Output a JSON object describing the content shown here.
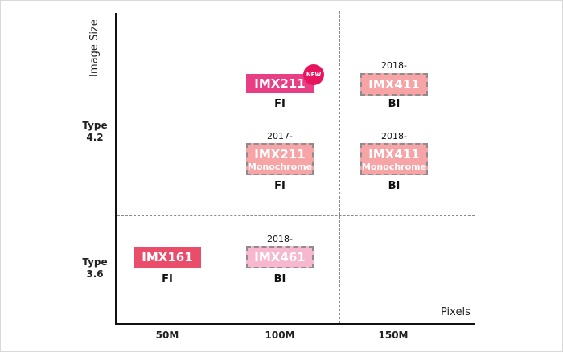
{
  "axes": {
    "y_title": "Image Size",
    "x_title": "Pixels",
    "y_ticks": [
      {
        "line1": "Type",
        "line2": "4.2"
      },
      {
        "line1": "Type",
        "line2": "3.6"
      }
    ],
    "x_ticks": [
      "50M",
      "100M",
      "150M"
    ]
  },
  "sensors": [
    {
      "id": "imx211",
      "name": "IMX211",
      "sub": "",
      "tech": "FI",
      "year": "",
      "badge": "NEW",
      "color": "#e83e84",
      "outline": "solid"
    },
    {
      "id": "imx411",
      "name": "IMX411",
      "sub": "",
      "tech": "BI",
      "year": "2018-",
      "badge": "",
      "color": "#f6a4a5",
      "outline": "dashed"
    },
    {
      "id": "imx211-mono",
      "name": "IMX211",
      "sub": "Monochrome",
      "tech": "FI",
      "year": "2017-",
      "badge": "",
      "color": "#f6a4a5",
      "outline": "dashed"
    },
    {
      "id": "imx411-mono",
      "name": "IMX411",
      "sub": "Monochrome",
      "tech": "BI",
      "year": "2018-",
      "badge": "",
      "color": "#f6a4a5",
      "outline": "dashed"
    },
    {
      "id": "imx161",
      "name": "IMX161",
      "sub": "",
      "tech": "FI",
      "year": "",
      "badge": "",
      "color": "#ea4d6a",
      "outline": "solid"
    },
    {
      "id": "imx461",
      "name": "IMX461",
      "sub": "",
      "tech": "BI",
      "year": "2018-",
      "badge": "",
      "color": "#f7b7cf",
      "outline": "dashed"
    }
  ]
}
